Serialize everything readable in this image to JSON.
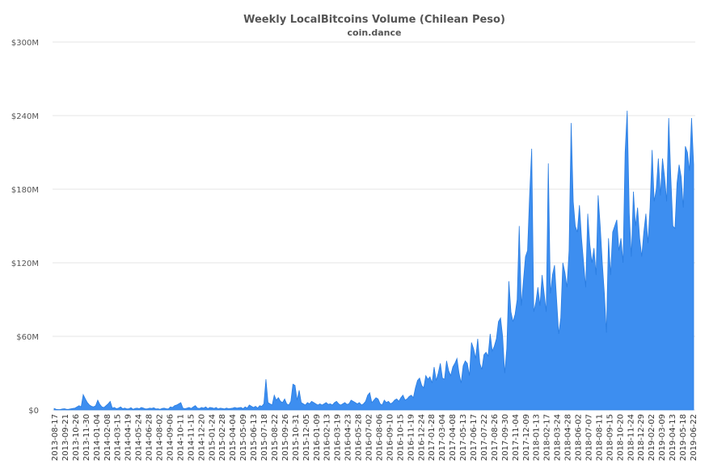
{
  "chart_data": {
    "type": "area",
    "title": "Weekly LocalBitcoins Volume (Chilean Peso)",
    "subtitle": "coin.dance",
    "xlabel": "",
    "ylabel": "",
    "ylim": [
      0,
      300000000
    ],
    "yticks": [
      0,
      60000000,
      120000000,
      180000000,
      240000000,
      300000000
    ],
    "ytick_labels": [
      "$0",
      "$60M",
      "$120M",
      "$180M",
      "$240M",
      "$300M"
    ],
    "xtick_labels": [
      "2013-08-17",
      "2013-09-21",
      "2013-10-26",
      "2013-11-30",
      "2014-01-04",
      "2014-02-08",
      "2014-03-15",
      "2014-04-19",
      "2014-05-24",
      "2014-06-28",
      "2014-08-02",
      "2014-09-06",
      "2014-10-11",
      "2014-11-15",
      "2014-12-20",
      "2015-01-24",
      "2015-02-28",
      "2015-04-04",
      "2015-05-09",
      "2015-06-13",
      "2015-07-18",
      "2015-08-22",
      "2015-09-26",
      "2015-10-31",
      "2015-12-05",
      "2016-01-09",
      "2016-02-13",
      "2016-03-19",
      "2016-04-23",
      "2016-05-28",
      "2016-07-02",
      "2016-08-06",
      "2016-09-10",
      "2016-10-15",
      "2016-11-19",
      "2016-12-24",
      "2017-01-28",
      "2017-03-04",
      "2017-04-08",
      "2017-05-13",
      "2017-06-17",
      "2017-07-22",
      "2017-08-26",
      "2017-09-30",
      "2017-11-04",
      "2017-12-09",
      "2018-01-13",
      "2018-02-17",
      "2018-03-24",
      "2018-04-28",
      "2018-06-02",
      "2018-07-07",
      "2018-08-11",
      "2018-09-15",
      "2018-10-20",
      "2018-11-24",
      "2018-12-29",
      "2019-02-02",
      "2019-03-09",
      "2019-04-13",
      "2019-05-18",
      "2019-06-22"
    ],
    "grid": true,
    "legend": "none",
    "colors": {
      "fill": "#3d8ef0",
      "stroke": "#2a7de1"
    },
    "series": [
      {
        "values": [
          1.2,
          0.5,
          0.3,
          0.4,
          0.8,
          1.0,
          0.5,
          0.6,
          0.9,
          1.2,
          1.5,
          2.5,
          3.5,
          2.5,
          12.5,
          9.0,
          6.0,
          4.0,
          3.0,
          2.5,
          3.5,
          8.0,
          4.5,
          2.5,
          2.0,
          3.5,
          5.0,
          7.0,
          1.5,
          2.0,
          1.0,
          1.5,
          2.5,
          1.0,
          1.5,
          0.8,
          1.0,
          1.8,
          0.5,
          1.2,
          1.5,
          1.0,
          2.0,
          1.5,
          0.8,
          1.0,
          1.5,
          1.2,
          1.8,
          0.8,
          1.0,
          0.5,
          1.2,
          1.5,
          1.0,
          0.8,
          2.5,
          2.0,
          3.5,
          4.0,
          5.0,
          6.0,
          1.5,
          1.0,
          1.5,
          2.0,
          1.2,
          2.5,
          3.5,
          1.5,
          1.2,
          2.0,
          1.5,
          2.5,
          1.0,
          2.0,
          1.8,
          1.2,
          2.0,
          0.8,
          1.5,
          1.2,
          0.8,
          1.5,
          1.0,
          1.2,
          1.5,
          2.0,
          1.5,
          1.8,
          2.0,
          1.0,
          2.5,
          1.5,
          4.0,
          3.0,
          2.0,
          3.0,
          1.5,
          3.5,
          3.0,
          5.0,
          25.0,
          6.0,
          5.0,
          4.0,
          12.0,
          8.0,
          10.0,
          7.0,
          6.0,
          9.0,
          5.0,
          4.0,
          7.0,
          21.0,
          20.0,
          8.0,
          16.0,
          6.0,
          5.0,
          4.0,
          6.0,
          5.0,
          7.0,
          6.0,
          5.0,
          4.0,
          5.0,
          4.0,
          5.0,
          6.0,
          4.5,
          5.0,
          4.0,
          6.0,
          7.0,
          5.0,
          4.0,
          5.0,
          6.0,
          4.5,
          5.0,
          8.0,
          7.0,
          6.0,
          5.0,
          6.0,
          4.0,
          5.0,
          7.0,
          12.0,
          14.0,
          6.0,
          8.0,
          10.0,
          9.0,
          5.0,
          4.0,
          8.0,
          6.0,
          7.0,
          5.0,
          6.0,
          8.0,
          9.0,
          7.0,
          10.0,
          12.0,
          8.0,
          9.0,
          11.0,
          12.0,
          10.0,
          18.0,
          24.0,
          26.0,
          20.0,
          18.0,
          28.0,
          25.0,
          27.0,
          22.0,
          35.0,
          24.0,
          30.0,
          38.0,
          26.0,
          25.0,
          40.0,
          32.0,
          28.0,
          35.0,
          38.0,
          42.0,
          30.0,
          22.0,
          36.0,
          40.0,
          38.0,
          28.0,
          55.0,
          50.0,
          42.0,
          58.0,
          38.0,
          33.0,
          45.0,
          47.0,
          44.0,
          62.0,
          48.0,
          52.0,
          58.0,
          72.0,
          75.0,
          60.0,
          30.0,
          50.0,
          105.0,
          80.0,
          72.0,
          78.0,
          90.0,
          150.0,
          85.0,
          105.0,
          125.0,
          130.0,
          175.0,
          213.0,
          80.0,
          88.0,
          100.0,
          85.0,
          110.0,
          95.0,
          80.0,
          201.0,
          95.0,
          110.0,
          118.0,
          90.0,
          62.0,
          75.0,
          120.0,
          112.0,
          100.0,
          130.0,
          234.0,
          170.0,
          150.0,
          145.0,
          167.0,
          140.0,
          120.0,
          100.0,
          160.0,
          135.0,
          120.0,
          132.0,
          110.0,
          175.0,
          150.0,
          120.0,
          95.0,
          63.0,
          140.0,
          110.0,
          145.0,
          150.0,
          155.0,
          130.0,
          140.0,
          120.0,
          210.0,
          244.0,
          160.0,
          125.0,
          178.0,
          150.0,
          165.0,
          140.0,
          125.0,
          145.0,
          160.0,
          136.0,
          165.0,
          212.0,
          170.0,
          180.0,
          205.0,
          175.0,
          205.0,
          190.0,
          170.0,
          238.0,
          190.0,
          150.0,
          148.0,
          185.0,
          200.0,
          190.0,
          165.0,
          215.0,
          210.0,
          195.0,
          238.0,
          200.0
        ]
      }
    ]
  }
}
